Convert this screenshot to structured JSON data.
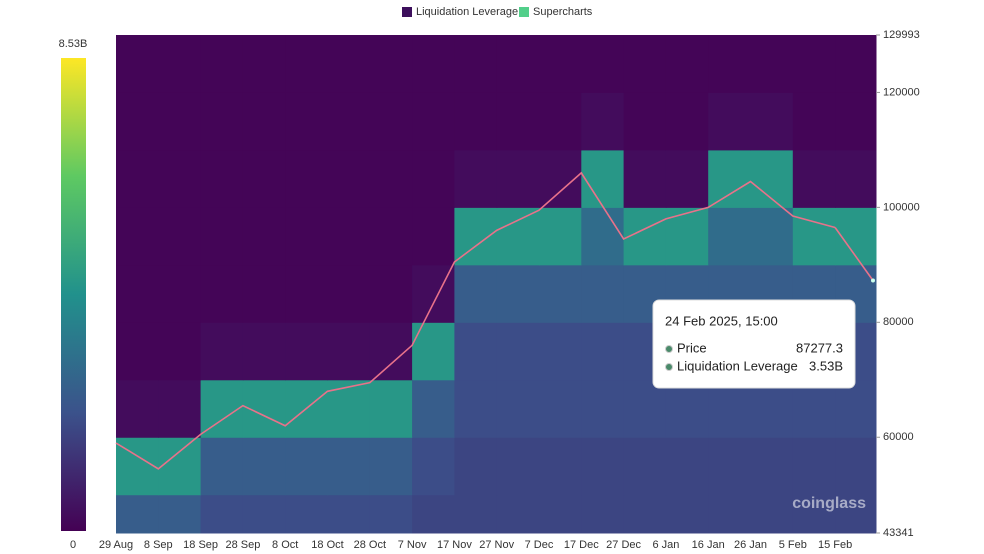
{
  "chart_data": {
    "type": "heatmap",
    "legend": [
      "Liquidation Leverage",
      "Supercharts"
    ],
    "legend_colors": [
      "#3d0f5c",
      "#52cf8a"
    ],
    "categories": [
      "29 Aug",
      "8 Sep",
      "18 Sep",
      "28 Sep",
      "8 Oct",
      "18 Oct",
      "28 Oct",
      "7 Nov",
      "17 Nov",
      "27 Nov",
      "7 Dec",
      "17 Dec",
      "27 Dec",
      "6 Jan",
      "16 Jan",
      "26 Jan",
      "5 Feb",
      "15 Feb"
    ],
    "ylim": [
      43341,
      129993
    ],
    "yticks": [
      43341,
      60000,
      80000,
      100000,
      120000,
      129993
    ],
    "colorbar_ticks": [
      0,
      {
        "value": 8.53,
        "label": "8.53B"
      }
    ],
    "heatmap": {
      "ybins": [
        43341,
        50000,
        60000,
        70000,
        80000,
        90000,
        100000,
        110000,
        120000,
        129993
      ],
      "z": [
        [
          2.5,
          2.5,
          2.0,
          2.0,
          2.0,
          2.0,
          2.0,
          1.8,
          1.8,
          1.8,
          1.8,
          1.8,
          1.8,
          1.8,
          1.8,
          1.8,
          1.8,
          1.8
        ],
        [
          4.5,
          4.5,
          2.5,
          2.5,
          2.5,
          2.5,
          2.5,
          2.0,
          1.8,
          1.8,
          1.8,
          1.8,
          1.8,
          1.8,
          1.8,
          1.8,
          1.8,
          1.8
        ],
        [
          0.3,
          0.3,
          4.5,
          4.5,
          4.5,
          4.5,
          4.5,
          2.5,
          2.0,
          2.0,
          2.0,
          2.0,
          2.0,
          2.0,
          2.0,
          2.0,
          2.0,
          2.0
        ],
        [
          0.1,
          0.1,
          0.3,
          0.3,
          0.3,
          0.3,
          0.3,
          4.5,
          2.0,
          2.0,
          2.0,
          2.0,
          2.0,
          2.0,
          2.0,
          2.0,
          2.0,
          2.0
        ],
        [
          0.1,
          0.1,
          0.1,
          0.1,
          0.1,
          0.1,
          0.1,
          0.3,
          2.5,
          2.5,
          2.5,
          2.5,
          2.5,
          2.5,
          2.5,
          2.5,
          2.5,
          2.5
        ],
        [
          0.1,
          0.1,
          0.1,
          0.1,
          0.1,
          0.1,
          0.1,
          0.1,
          4.5,
          4.5,
          4.5,
          3.0,
          4.5,
          4.5,
          3.0,
          3.0,
          4.5,
          4.5
        ],
        [
          0.1,
          0.1,
          0.1,
          0.1,
          0.1,
          0.1,
          0.1,
          0.1,
          0.3,
          0.3,
          0.3,
          4.5,
          0.3,
          0.3,
          4.5,
          4.5,
          0.3,
          0.3
        ],
        [
          0.1,
          0.1,
          0.1,
          0.1,
          0.1,
          0.1,
          0.1,
          0.1,
          0.1,
          0.1,
          0.1,
          0.3,
          0.1,
          0.1,
          0.3,
          0.3,
          0.1,
          0.1
        ],
        [
          0.1,
          0.1,
          0.1,
          0.1,
          0.1,
          0.1,
          0.1,
          0.1,
          0.1,
          0.1,
          0.1,
          0.1,
          0.1,
          0.1,
          0.1,
          0.1,
          0.1,
          0.1
        ]
      ]
    },
    "series": [
      {
        "name": "Price",
        "color": "#e8728a",
        "values": [
          59000,
          54500,
          60500,
          65500,
          62000,
          68000,
          69500,
          76000,
          90500,
          96000,
          99500,
          106000,
          94500,
          98000,
          100000,
          104500,
          98500,
          96500
        ]
      }
    ],
    "tooltip": {
      "time": "24 Feb 2025, 15:00",
      "price_name": "Price",
      "price": 87277.3,
      "leverage_name": "Liquidation Leverage",
      "leverage": 3.53,
      "leverage_label": "3.53B"
    },
    "watermark": "coinglass"
  }
}
